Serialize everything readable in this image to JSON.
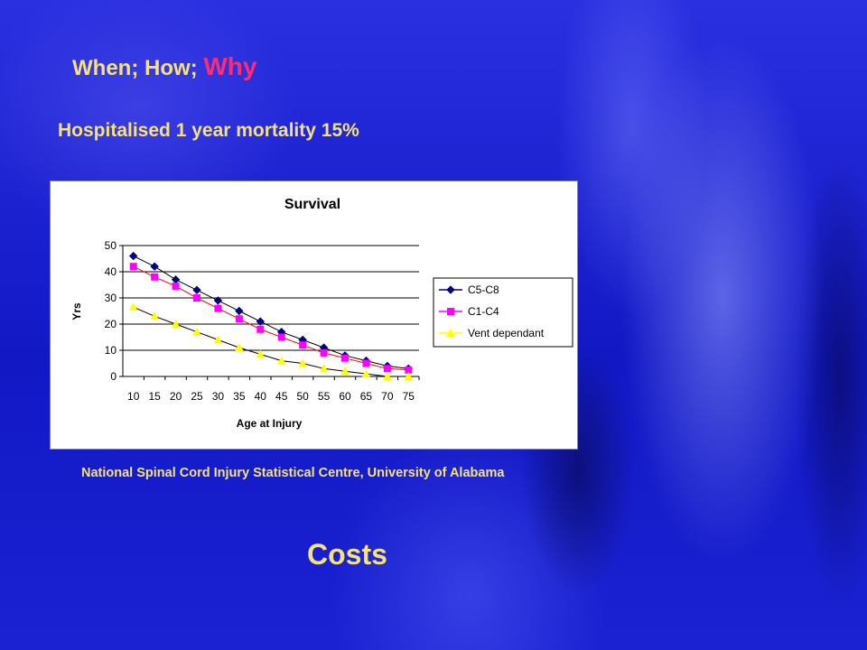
{
  "slide": {
    "title_part1": "When; How;",
    "title_part2": "Why",
    "subtitle": "Hospitalised 1 year mortality 15%",
    "source": "National Spinal Cord Injury Statistical Centre, University of Alabama",
    "footer": "Costs"
  },
  "colors": {
    "text": "#f6e27a",
    "why": "#ff2d6f",
    "series": [
      "#000080",
      "#ff00ff",
      "#ffff00"
    ]
  },
  "chart_data": {
    "type": "line",
    "title": "Survival",
    "xlabel": "Age at Injury",
    "ylabel": "Yrs",
    "ylim": [
      0,
      50
    ],
    "yticks": [
      0,
      10,
      20,
      30,
      40,
      50
    ],
    "grid": "horizontal",
    "legend_position": "right",
    "categories": [
      "10",
      "15",
      "20",
      "25",
      "30",
      "35",
      "40",
      "45",
      "50",
      "55",
      "60",
      "65",
      "70",
      "75"
    ],
    "series": [
      {
        "name": "C5-C8",
        "marker": "diamond",
        "values": [
          46,
          42,
          37,
          33,
          29,
          25,
          21,
          17,
          14,
          11,
          8,
          6,
          4,
          3
        ]
      },
      {
        "name": "C1-C4",
        "marker": "square",
        "values": [
          42,
          38,
          34.5,
          30,
          26,
          22,
          18,
          15,
          12,
          9,
          7,
          5,
          3,
          2.5
        ]
      },
      {
        "name": "Vent dependant",
        "marker": "triangle",
        "values": [
          26.5,
          23,
          20,
          17,
          14,
          11,
          8.5,
          6,
          5,
          3,
          2,
          1,
          0,
          0
        ]
      }
    ]
  }
}
